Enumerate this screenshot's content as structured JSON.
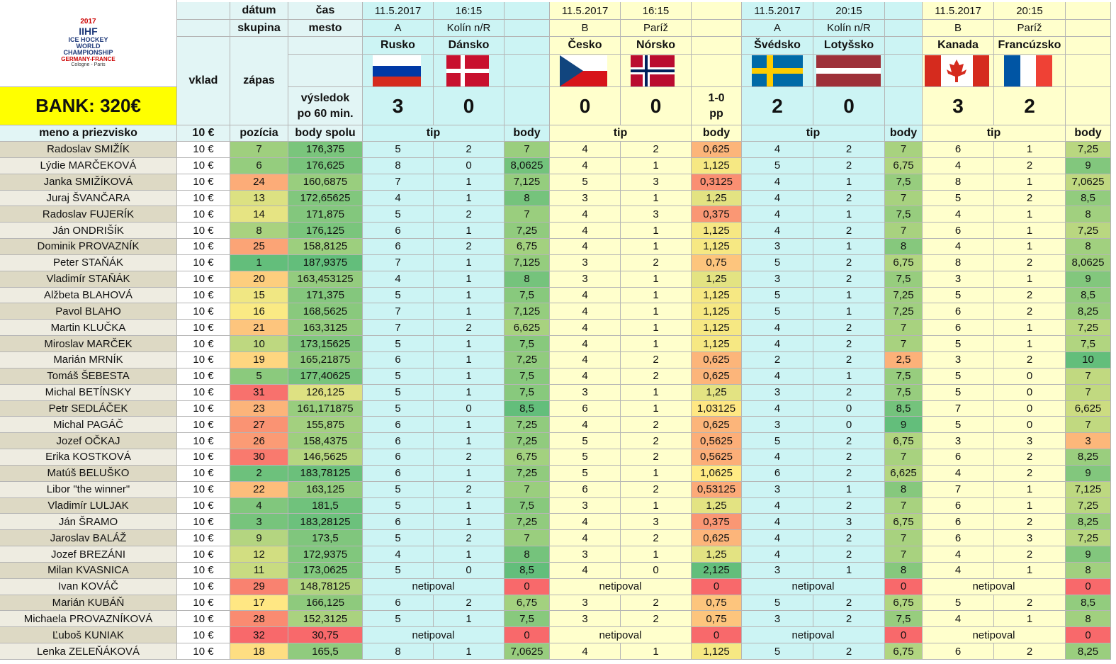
{
  "header": {
    "logo": [
      "2017",
      "IIHF",
      "ICE HOCKEY",
      "WORLD",
      "CHAMPIONSHIP",
      "GERMANY-FRANCE",
      "Cologne - Paris"
    ],
    "bank": "BANK: 320€",
    "date": "dátum",
    "time": "čas",
    "group": "skupina",
    "city": "mesto",
    "stake": "vklad",
    "match": "zápas",
    "result": [
      "výsledok",
      "po 60 min."
    ],
    "name": "meno a priezvisko",
    "stake_value": "10 €",
    "position": "pozícia",
    "total": "body spolu",
    "tip": "tip",
    "points": "body"
  },
  "matches": [
    {
      "date": "11.5.2017",
      "time": "16:15",
      "group": "A",
      "city": "Kolín n/R",
      "teams": [
        "Rusko",
        "Dánsko"
      ],
      "score": [
        3,
        0
      ]
    },
    {
      "date": "11.5.2017",
      "time": "16:15",
      "group": "B",
      "city": "Paríž",
      "teams": [
        "Česko",
        "Nórsko"
      ],
      "score": [
        0,
        0
      ],
      "note": [
        "1-0",
        "pp"
      ]
    },
    {
      "date": "11.5.2017",
      "time": "20:15",
      "group": "A",
      "city": "Kolín n/R",
      "teams": [
        "Švédsko",
        "Lotyšsko"
      ],
      "score": [
        2,
        0
      ]
    },
    {
      "date": "11.5.2017",
      "time": "20:15",
      "group": "B",
      "city": "Paríž",
      "teams": [
        "Kanada",
        "Francúzsko"
      ],
      "score": [
        3,
        2
      ]
    }
  ],
  "rows": [
    [
      "Radoslav SMIŽÍK",
      "10 €",
      "7",
      "176,375",
      [
        [
          "5",
          "2",
          "7"
        ],
        [
          "4",
          "2",
          "0,625"
        ],
        [
          "4",
          "2",
          "7"
        ],
        [
          "6",
          "1",
          "7,25"
        ]
      ]
    ],
    [
      "Lýdie MARČEKOVÁ",
      "10 €",
      "6",
      "176,625",
      [
        [
          "8",
          "0",
          "8,0625"
        ],
        [
          "4",
          "1",
          "1,125"
        ],
        [
          "5",
          "2",
          "6,75"
        ],
        [
          "4",
          "2",
          "9"
        ]
      ]
    ],
    [
      "Janka SMIŽÍKOVÁ",
      "10 €",
      "24",
      "160,6875",
      [
        [
          "7",
          "1",
          "7,125"
        ],
        [
          "5",
          "3",
          "0,3125"
        ],
        [
          "4",
          "1",
          "7,5"
        ],
        [
          "8",
          "1",
          "7,0625"
        ]
      ]
    ],
    [
      "Juraj ŠVANČARA",
      "10 €",
      "13",
      "172,65625",
      [
        [
          "4",
          "1",
          "8"
        ],
        [
          "3",
          "1",
          "1,25"
        ],
        [
          "4",
          "2",
          "7"
        ],
        [
          "5",
          "2",
          "8,5"
        ]
      ]
    ],
    [
      "Radoslav FUJERÍK",
      "10 €",
      "14",
      "171,875",
      [
        [
          "5",
          "2",
          "7"
        ],
        [
          "4",
          "3",
          "0,375"
        ],
        [
          "4",
          "1",
          "7,5"
        ],
        [
          "4",
          "1",
          "8"
        ]
      ]
    ],
    [
      "Ján ONDRIŠÍK",
      "10 €",
      "8",
      "176,125",
      [
        [
          "6",
          "1",
          "7,25"
        ],
        [
          "4",
          "1",
          "1,125"
        ],
        [
          "4",
          "2",
          "7"
        ],
        [
          "6",
          "1",
          "7,25"
        ]
      ]
    ],
    [
      "Dominik PROVAZNÍK",
      "10 €",
      "25",
      "158,8125",
      [
        [
          "6",
          "2",
          "6,75"
        ],
        [
          "4",
          "1",
          "1,125"
        ],
        [
          "3",
          "1",
          "8"
        ],
        [
          "4",
          "1",
          "8"
        ]
      ]
    ],
    [
      "Peter STAŇÁK",
      "10 €",
      "1",
      "187,9375",
      [
        [
          "7",
          "1",
          "7,125"
        ],
        [
          "3",
          "2",
          "0,75"
        ],
        [
          "5",
          "2",
          "6,75"
        ],
        [
          "8",
          "2",
          "8,0625"
        ]
      ]
    ],
    [
      "Vladimír STAŇÁK",
      "10 €",
      "20",
      "163,453125",
      [
        [
          "4",
          "1",
          "8"
        ],
        [
          "3",
          "1",
          "1,25"
        ],
        [
          "3",
          "2",
          "7,5"
        ],
        [
          "3",
          "1",
          "9"
        ]
      ]
    ],
    [
      "Alžbeta BLAHOVÁ",
      "10 €",
      "15",
      "171,375",
      [
        [
          "5",
          "1",
          "7,5"
        ],
        [
          "4",
          "1",
          "1,125"
        ],
        [
          "5",
          "1",
          "7,25"
        ],
        [
          "5",
          "2",
          "8,5"
        ]
      ]
    ],
    [
      "Pavol BLAHO",
      "10 €",
      "16",
      "168,5625",
      [
        [
          "7",
          "1",
          "7,125"
        ],
        [
          "4",
          "1",
          "1,125"
        ],
        [
          "5",
          "1",
          "7,25"
        ],
        [
          "6",
          "2",
          "8,25"
        ]
      ]
    ],
    [
      "Martin KLUČKA",
      "10 €",
      "21",
      "163,3125",
      [
        [
          "7",
          "2",
          "6,625"
        ],
        [
          "4",
          "1",
          "1,125"
        ],
        [
          "4",
          "2",
          "7"
        ],
        [
          "6",
          "1",
          "7,25"
        ]
      ]
    ],
    [
      "Miroslav MARČEK",
      "10 €",
      "10",
      "173,15625",
      [
        [
          "5",
          "1",
          "7,5"
        ],
        [
          "4",
          "1",
          "1,125"
        ],
        [
          "4",
          "2",
          "7"
        ],
        [
          "5",
          "1",
          "7,5"
        ]
      ]
    ],
    [
      "Marián MRNÍK",
      "10 €",
      "19",
      "165,21875",
      [
        [
          "6",
          "1",
          "7,25"
        ],
        [
          "4",
          "2",
          "0,625"
        ],
        [
          "2",
          "2",
          "2,5"
        ],
        [
          "3",
          "2",
          "10"
        ]
      ]
    ],
    [
      "Tomáš ŠEBESTA",
      "10 €",
      "5",
      "177,40625",
      [
        [
          "5",
          "1",
          "7,5"
        ],
        [
          "4",
          "2",
          "0,625"
        ],
        [
          "4",
          "1",
          "7,5"
        ],
        [
          "5",
          "0",
          "7"
        ]
      ]
    ],
    [
      "Michal BETÍNSKY",
      "10 €",
      "31",
      "126,125",
      [
        [
          "5",
          "1",
          "7,5"
        ],
        [
          "3",
          "1",
          "1,25"
        ],
        [
          "3",
          "2",
          "7,5"
        ],
        [
          "5",
          "0",
          "7"
        ]
      ]
    ],
    [
      "Petr SEDLÁČEK",
      "10 €",
      "23",
      "161,171875",
      [
        [
          "5",
          "0",
          "8,5"
        ],
        [
          "6",
          "1",
          "1,03125"
        ],
        [
          "4",
          "0",
          "8,5"
        ],
        [
          "7",
          "0",
          "6,625"
        ]
      ]
    ],
    [
      "Michal PAGÁČ",
      "10 €",
      "27",
      "155,875",
      [
        [
          "6",
          "1",
          "7,25"
        ],
        [
          "4",
          "2",
          "0,625"
        ],
        [
          "3",
          "0",
          "9"
        ],
        [
          "5",
          "0",
          "7"
        ]
      ]
    ],
    [
      "Jozef OČKAJ",
      "10 €",
      "26",
      "158,4375",
      [
        [
          "6",
          "1",
          "7,25"
        ],
        [
          "5",
          "2",
          "0,5625"
        ],
        [
          "5",
          "2",
          "6,75"
        ],
        [
          "3",
          "3",
          "3"
        ]
      ]
    ],
    [
      "Erika KOSTKOVÁ",
      "10 €",
      "30",
      "146,5625",
      [
        [
          "6",
          "2",
          "6,75"
        ],
        [
          "5",
          "2",
          "0,5625"
        ],
        [
          "4",
          "2",
          "7"
        ],
        [
          "6",
          "2",
          "8,25"
        ]
      ]
    ],
    [
      "Matúš BELUŠKO",
      "10 €",
      "2",
      "183,78125",
      [
        [
          "6",
          "1",
          "7,25"
        ],
        [
          "5",
          "1",
          "1,0625"
        ],
        [
          "6",
          "2",
          "6,625"
        ],
        [
          "4",
          "2",
          "9"
        ]
      ]
    ],
    [
      "Libor \"the winner\"",
      "10 €",
      "22",
      "163,125",
      [
        [
          "5",
          "2",
          "7"
        ],
        [
          "6",
          "2",
          "0,53125"
        ],
        [
          "3",
          "1",
          "8"
        ],
        [
          "7",
          "1",
          "7,125"
        ]
      ]
    ],
    [
      "Vladimír LULJAK",
      "10 €",
      "4",
      "181,5",
      [
        [
          "5",
          "1",
          "7,5"
        ],
        [
          "3",
          "1",
          "1,25"
        ],
        [
          "4",
          "2",
          "7"
        ],
        [
          "6",
          "1",
          "7,25"
        ]
      ]
    ],
    [
      "Ján ŠRAMO",
      "10 €",
      "3",
      "183,28125",
      [
        [
          "6",
          "1",
          "7,25"
        ],
        [
          "4",
          "3",
          "0,375"
        ],
        [
          "4",
          "3",
          "6,75"
        ],
        [
          "6",
          "2",
          "8,25"
        ]
      ]
    ],
    [
      "Jaroslav BALÁŽ",
      "10 €",
      "9",
      "173,5",
      [
        [
          "5",
          "2",
          "7"
        ],
        [
          "4",
          "2",
          "0,625"
        ],
        [
          "4",
          "2",
          "7"
        ],
        [
          "6",
          "3",
          "7,25"
        ]
      ]
    ],
    [
      "Jozef BREZÁNI",
      "10 €",
      "12",
      "172,9375",
      [
        [
          "4",
          "1",
          "8"
        ],
        [
          "3",
          "1",
          "1,25"
        ],
        [
          "4",
          "2",
          "7"
        ],
        [
          "4",
          "2",
          "9"
        ]
      ]
    ],
    [
      "Milan KVASNICA",
      "10 €",
      "11",
      "173,0625",
      [
        [
          "5",
          "0",
          "8,5"
        ],
        [
          "4",
          "0",
          "2,125"
        ],
        [
          "3",
          "1",
          "8"
        ],
        [
          "4",
          "1",
          "8"
        ]
      ]
    ],
    [
      "Ivan KOVÁČ",
      "10 €",
      "29",
      "148,78125",
      [
        [
          "netipoval",
          "0"
        ],
        [
          "netipoval",
          "0"
        ],
        [
          "netipoval",
          "0"
        ],
        [
          "netipoval",
          "0"
        ]
      ]
    ],
    [
      "Marián KUBÁŇ",
      "10 €",
      "17",
      "166,125",
      [
        [
          "6",
          "2",
          "6,75"
        ],
        [
          "3",
          "2",
          "0,75"
        ],
        [
          "5",
          "2",
          "6,75"
        ],
        [
          "5",
          "2",
          "8,5"
        ]
      ]
    ],
    [
      "Michaela PROVAZNÍKOVÁ",
      "10 €",
      "28",
      "152,3125",
      [
        [
          "5",
          "1",
          "7,5"
        ],
        [
          "3",
          "2",
          "0,75"
        ],
        [
          "3",
          "2",
          "7,5"
        ],
        [
          "4",
          "1",
          "8"
        ]
      ]
    ],
    [
      "Ľuboš KUNIAK",
      "10 €",
      "32",
      "30,75",
      [
        [
          "netipoval",
          "0"
        ],
        [
          "netipoval",
          "0"
        ],
        [
          "netipoval",
          "0"
        ],
        [
          "netipoval",
          "0"
        ]
      ]
    ],
    [
      "Lenka ZELEŇÁKOVÁ",
      "10 €",
      "18",
      "165,5",
      [
        [
          "8",
          "1",
          "7,0625"
        ],
        [
          "4",
          "1",
          "1,125"
        ],
        [
          "5",
          "2",
          "6,75"
        ],
        [
          "6",
          "2",
          "8,25"
        ]
      ]
    ]
  ]
}
